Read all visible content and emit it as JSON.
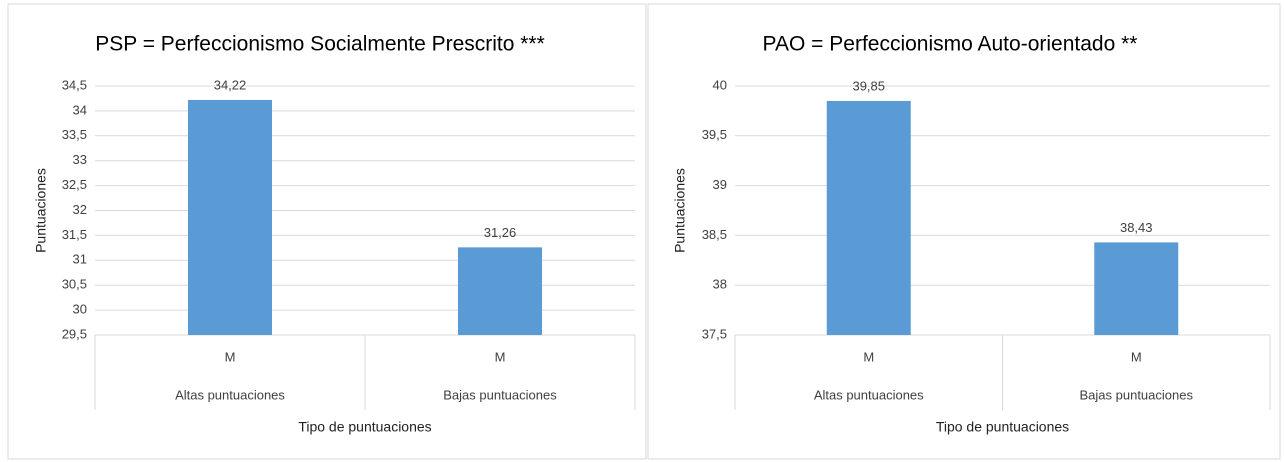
{
  "chart_data": [
    {
      "type": "bar",
      "title": "PSP = Perfeccionismo Socialmente Prescrito ***",
      "y_label": "Puntuaciones",
      "x_label": "Tipo de puntuaciones",
      "categories": [
        "M",
        "M"
      ],
      "groups": [
        "Altas puntuaciones",
        "Bajas puntuaciones"
      ],
      "values": [
        34.22,
        31.26
      ],
      "value_labels": [
        "34,22",
        "31,26"
      ],
      "color": "#5b9bd5",
      "ylim": [
        29.5,
        34.5
      ],
      "yticks": [
        {
          "value": 29.5,
          "label": "29,5"
        },
        30,
        {
          "value": 30.5,
          "label": "30,5"
        },
        31,
        {
          "value": 31.5,
          "label": "31,5"
        },
        32,
        {
          "value": 32.5,
          "label": "32,5"
        },
        33,
        {
          "value": 33.5,
          "label": "33,5"
        },
        34,
        {
          "value": 34.5,
          "label": "34,5"
        }
      ],
      "grid": true
    },
    {
      "type": "bar",
      "title": "PAO = Perfeccionismo  Auto-orientado **",
      "y_label": "Puntuaciones",
      "x_label": "Tipo de puntuaciones",
      "categories": [
        "M",
        "M"
      ],
      "groups": [
        "Altas puntuaciones",
        "Bajas puntuaciones"
      ],
      "values": [
        39.85,
        38.43
      ],
      "value_labels": [
        "39,85",
        "38,43"
      ],
      "color": "#5b9bd5",
      "ylim": [
        37.5,
        40
      ],
      "yticks": [
        {
          "value": 37.5,
          "label": "37,5"
        },
        38,
        {
          "value": 38.5,
          "label": "38,5"
        },
        39,
        {
          "value": 39.5,
          "label": "39,5"
        },
        40
      ],
      "grid": true
    }
  ]
}
